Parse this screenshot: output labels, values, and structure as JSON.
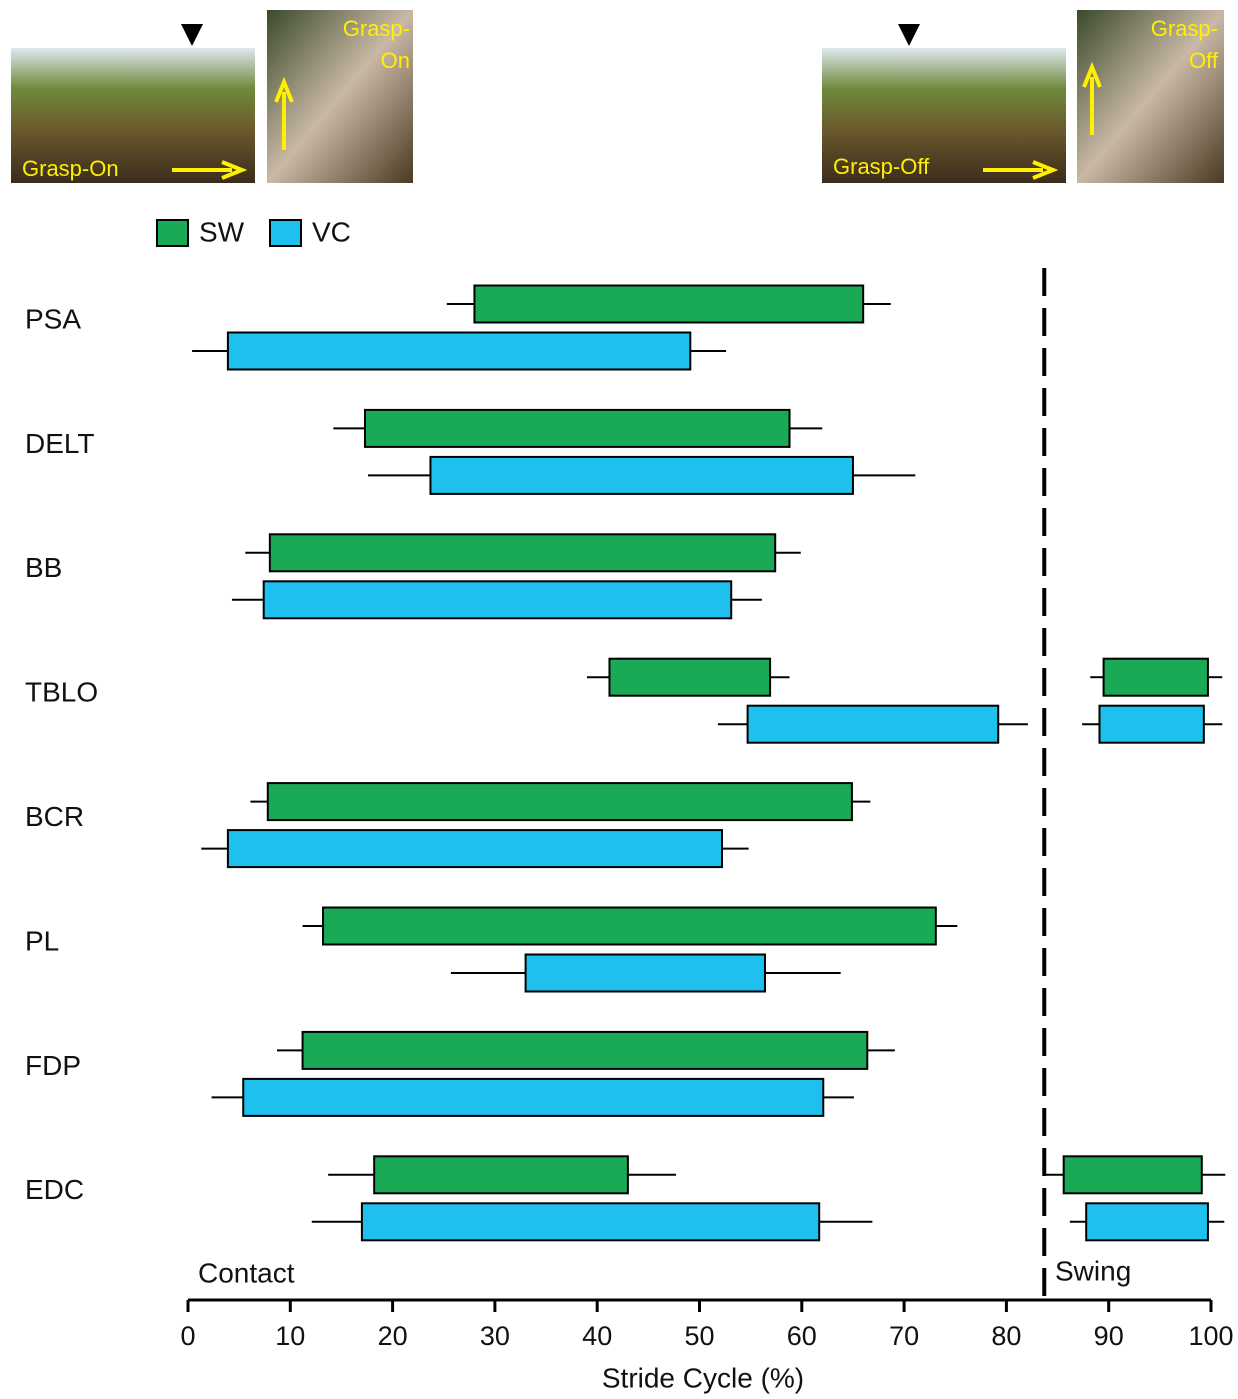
{
  "chart_data": {
    "type": "floating-bar",
    "xlabel": "Stride Cycle (%)",
    "xlim": [
      0,
      100
    ],
    "xticks": [
      0,
      10,
      20,
      30,
      40,
      50,
      60,
      70,
      80,
      90,
      100
    ],
    "categories": [
      "PSA",
      "DELT",
      "BB",
      "TBLO",
      "BCR",
      "PL",
      "FDP",
      "EDC"
    ],
    "divider": 83.7,
    "phase_labels": [
      "Contact",
      "Swing"
    ],
    "images": [
      {
        "caption": [
          "Grasp-On"
        ]
      },
      {
        "caption": [
          "Grasp-",
          "On"
        ]
      },
      {
        "caption": [
          "Grasp-Off"
        ]
      },
      {
        "caption": [
          "Grasp-",
          "Off"
        ]
      }
    ],
    "series": [
      {
        "name": "SW",
        "color": "#1aa955",
        "bars": [
          [
            {
              "start": 28,
              "end": 66,
              "start_err": 2.7,
              "end_err": 2.7
            }
          ],
          [
            {
              "start": 17.3,
              "end": 58.8,
              "start_err": 3.1,
              "end_err": 3.2
            }
          ],
          [
            {
              "start": 8,
              "end": 57.4,
              "start_err": 2.4,
              "end_err": 2.5
            }
          ],
          [
            {
              "start": 41.2,
              "end": 56.9,
              "start_err": 2.2,
              "end_err": 1.9
            },
            {
              "start": 89.5,
              "end": 99.7,
              "start_err": 1.3,
              "end_err": 1.4
            }
          ],
          [
            {
              "start": 7.8,
              "end": 64.9,
              "start_err": 1.7,
              "end_err": 1.8
            }
          ],
          [
            {
              "start": 13.2,
              "end": 73.1,
              "start_err": 2.0,
              "end_err": 2.1
            }
          ],
          [
            {
              "start": 11.2,
              "end": 66.4,
              "start_err": 2.5,
              "end_err": 2.7
            }
          ],
          [
            {
              "start": 18.2,
              "end": 43,
              "start_err": 4.5,
              "end_err": 4.7
            },
            {
              "start": 85.6,
              "end": 99.1,
              "start_err": 1.8,
              "end_err": 2.3
            }
          ]
        ]
      },
      {
        "name": "VC",
        "color": "#1ec0ee",
        "bars": [
          [
            {
              "start": 3.9,
              "end": 49.1,
              "start_err": 3.5,
              "end_err": 3.5
            }
          ],
          [
            {
              "start": 23.7,
              "end": 65,
              "start_err": 6.1,
              "end_err": 6.1
            }
          ],
          [
            {
              "start": 7.4,
              "end": 53.1,
              "start_err": 3.1,
              "end_err": 3.0
            }
          ],
          [
            {
              "start": 54.7,
              "end": 79.2,
              "start_err": 2.9,
              "end_err": 2.9
            },
            {
              "start": 89.1,
              "end": 99.3,
              "start_err": 1.7,
              "end_err": 1.8
            }
          ],
          [
            {
              "start": 3.9,
              "end": 52.2,
              "start_err": 2.6,
              "end_err": 2.6
            }
          ],
          [
            {
              "start": 33,
              "end": 56.4,
              "start_err": 7.3,
              "end_err": 7.4
            }
          ],
          [
            {
              "start": 5.4,
              "end": 62.1,
              "start_err": 3.1,
              "end_err": 3.0
            }
          ],
          [
            {
              "start": 17,
              "end": 61.7,
              "start_err": 4.9,
              "end_err": 5.2
            },
            {
              "start": 87.8,
              "end": 99.7,
              "start_err": 1.6,
              "end_err": 1.6
            }
          ]
        ]
      }
    ]
  }
}
